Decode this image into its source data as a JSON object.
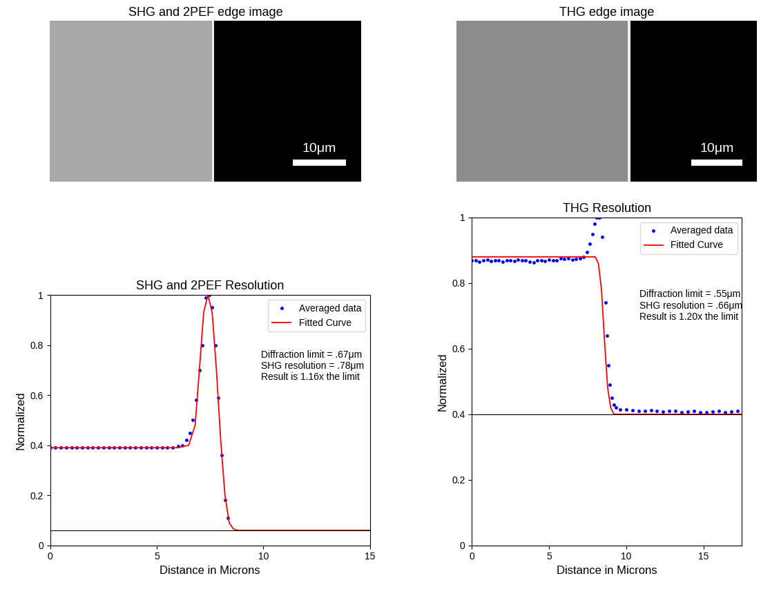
{
  "images": [
    {
      "title": "SHG and 2PEF edge image",
      "scale_bar": "10μm"
    },
    {
      "title": "THG edge image",
      "scale_bar": "10μm"
    }
  ],
  "chart_data": [
    {
      "type": "line",
      "title": "SHG and 2PEF Resolution",
      "x_label": "Distance in Microns",
      "y_label": "Normalized",
      "xlim": [
        0,
        15
      ],
      "xticks": [
        0,
        5,
        10,
        15
      ],
      "ylim": [
        0,
        1
      ],
      "yticks": [
        0,
        0.2,
        0.4,
        0.6,
        0.8,
        1
      ],
      "hlines": [
        0.06
      ],
      "legend": "upper right",
      "annotation": "Diffraction limit = .67μm SHG resolution = .78μm Result is 1.16x the limit",
      "series": [
        {
          "name": "Averaged data",
          "type": "scatter",
          "color": "#0000ff",
          "x": [
            0,
            0.25,
            0.5,
            0.75,
            1.0,
            1.25,
            1.5,
            1.75,
            2.0,
            2.25,
            2.5,
            2.75,
            3.0,
            3.25,
            3.5,
            3.75,
            4.0,
            4.25,
            4.5,
            4.75,
            5.0,
            5.25,
            5.5,
            5.75,
            6.0,
            6.2,
            6.4,
            6.55,
            6.7,
            6.85,
            7.0,
            7.15,
            7.3,
            7.45,
            7.6,
            7.75,
            7.9,
            8.05,
            8.2,
            8.35
          ],
          "values": [
            0.39,
            0.39,
            0.39,
            0.39,
            0.39,
            0.39,
            0.39,
            0.39,
            0.39,
            0.39,
            0.39,
            0.39,
            0.39,
            0.39,
            0.39,
            0.39,
            0.39,
            0.39,
            0.39,
            0.39,
            0.39,
            0.39,
            0.39,
            0.39,
            0.395,
            0.4,
            0.42,
            0.45,
            0.5,
            0.58,
            0.7,
            0.8,
            0.99,
            1.0,
            0.95,
            0.8,
            0.59,
            0.36,
            0.18,
            0.11
          ]
        },
        {
          "name": "Fitted Curve",
          "type": "line",
          "color": "#ff0000",
          "x": [
            0,
            5,
            6,
            6.5,
            6.8,
            7.0,
            7.2,
            7.4,
            7.6,
            7.8,
            8.0,
            8.2,
            8.4,
            8.6,
            8.8,
            15
          ],
          "values": [
            0.39,
            0.39,
            0.39,
            0.4,
            0.48,
            0.7,
            0.93,
            1.0,
            0.93,
            0.7,
            0.42,
            0.2,
            0.09,
            0.065,
            0.06,
            0.06
          ]
        }
      ]
    },
    {
      "type": "line",
      "title": "THG Resolution",
      "x_label": "Distance in Microns",
      "y_label": "Normalized",
      "xlim": [
        0,
        17.5
      ],
      "xticks": [
        0,
        5,
        10,
        15
      ],
      "ylim": [
        0,
        1
      ],
      "yticks": [
        0,
        0.2,
        0.4,
        0.6,
        0.8,
        1
      ],
      "hlines": [
        0.4
      ],
      "legend": "upper right",
      "annotation": "Diffraction limit = .55μm SHG resolution = .66μm Result is 1.20x the limit",
      "series": [
        {
          "name": "Averaged data",
          "type": "scatter",
          "color": "#0000ff",
          "x": [
            0,
            0.25,
            0.5,
            0.75,
            1.0,
            1.25,
            1.5,
            1.75,
            2.0,
            2.25,
            2.5,
            2.75,
            3.0,
            3.25,
            3.5,
            3.75,
            4.0,
            4.25,
            4.5,
            4.75,
            5.0,
            5.25,
            5.5,
            5.75,
            6.0,
            6.25,
            6.5,
            6.75,
            7.0,
            7.25,
            7.45,
            7.65,
            7.8,
            7.95,
            8.1,
            8.25,
            8.45,
            8.65,
            8.75,
            8.85,
            8.95,
            9.05,
            9.2,
            9.35,
            9.6,
            10.0,
            10.4,
            10.8,
            11.2,
            11.6,
            12.0,
            12.4,
            12.8,
            13.2,
            13.6,
            14.0,
            14.4,
            14.8,
            15.2,
            15.6,
            16.0,
            16.4,
            16.8,
            17.2
          ],
          "values": [
            0.87,
            0.87,
            0.865,
            0.87,
            0.872,
            0.868,
            0.87,
            0.87,
            0.865,
            0.87,
            0.87,
            0.868,
            0.872,
            0.87,
            0.87,
            0.865,
            0.862,
            0.87,
            0.87,
            0.868,
            0.872,
            0.87,
            0.87,
            0.875,
            0.873,
            0.875,
            0.872,
            0.874,
            0.876,
            0.88,
            0.895,
            0.92,
            0.95,
            0.98,
            1.0,
            1.0,
            0.94,
            0.74,
            0.64,
            0.55,
            0.49,
            0.45,
            0.43,
            0.42,
            0.415,
            0.415,
            0.413,
            0.41,
            0.41,
            0.412,
            0.41,
            0.408,
            0.41,
            0.41,
            0.405,
            0.408,
            0.41,
            0.406,
            0.405,
            0.408,
            0.41,
            0.406,
            0.408,
            0.41
          ]
        },
        {
          "name": "Fitted Curve",
          "type": "line",
          "color": "#ff0000",
          "x": [
            0,
            8.0,
            8.2,
            8.4,
            8.6,
            8.8,
            9.0,
            9.2,
            17.5
          ],
          "values": [
            0.88,
            0.88,
            0.86,
            0.78,
            0.62,
            0.48,
            0.42,
            0.4,
            0.4
          ]
        }
      ]
    }
  ]
}
